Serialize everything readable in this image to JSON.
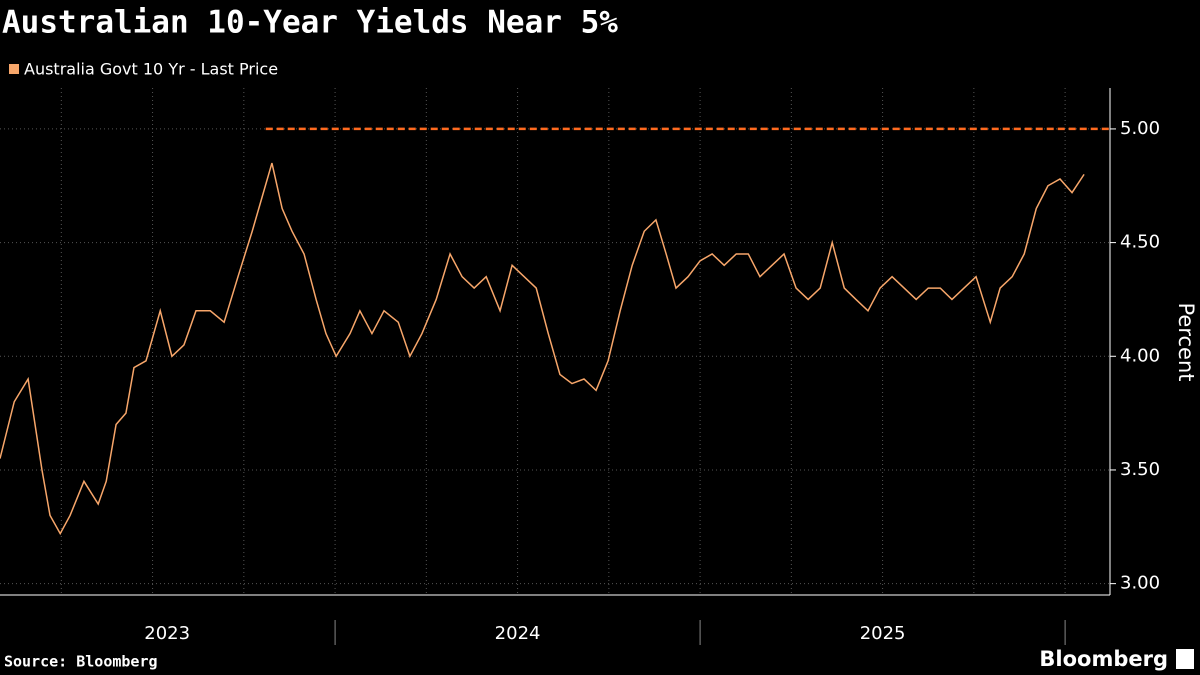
{
  "chart_data": {
    "type": "line",
    "title": "Australian 10-Year Yields Near 5%",
    "source": "Source: Bloomberg",
    "brand": "Bloomberg",
    "y_label": "Percent",
    "series": [
      {
        "name": "Australia Govt 10 Yr - Last Price",
        "color": "#f7a66a",
        "x": [
          2023.082,
          2023.121,
          2023.159,
          2023.197,
          2023.219,
          2023.247,
          2023.274,
          2023.312,
          2023.351,
          2023.373,
          2023.4,
          2023.427,
          2023.449,
          2023.482,
          2023.521,
          2023.553,
          2023.586,
          2023.619,
          2023.658,
          2023.696,
          2023.734,
          2023.773,
          2023.8,
          2023.827,
          2023.855,
          2023.882,
          2023.915,
          2023.948,
          2023.975,
          2024.003,
          2024.041,
          2024.068,
          2024.101,
          2024.134,
          2024.173,
          2024.205,
          2024.238,
          2024.277,
          2024.315,
          2024.348,
          2024.381,
          2024.414,
          2024.452,
          2024.485,
          2024.518,
          2024.551,
          2024.584,
          2024.616,
          2024.649,
          2024.682,
          2024.715,
          2024.748,
          2024.781,
          2024.814,
          2024.847,
          2024.879,
          2024.907,
          2024.934,
          2024.967,
          2025.0,
          2025.033,
          2025.066,
          2025.099,
          2025.132,
          2025.164,
          2025.197,
          2025.23,
          2025.263,
          2025.296,
          2025.329,
          2025.362,
          2025.395,
          2025.427,
          2025.46,
          2025.493,
          2025.526,
          2025.559,
          2025.592,
          2025.625,
          2025.658,
          2025.69,
          2025.723,
          2025.756,
          2025.795,
          2025.822,
          2025.855,
          2025.888,
          2025.921,
          2025.953,
          2025.986,
          2026.019,
          2026.052
        ],
        "values": [
          3.55,
          3.8,
          3.9,
          3.5,
          3.3,
          3.22,
          3.3,
          3.45,
          3.35,
          3.45,
          3.7,
          3.75,
          3.95,
          3.98,
          4.2,
          4.0,
          4.05,
          4.2,
          4.2,
          4.15,
          4.35,
          4.55,
          4.7,
          4.85,
          4.65,
          4.55,
          4.45,
          4.25,
          4.1,
          4.0,
          4.1,
          4.2,
          4.1,
          4.2,
          4.15,
          4.0,
          4.1,
          4.25,
          4.45,
          4.35,
          4.3,
          4.35,
          4.2,
          4.4,
          4.35,
          4.3,
          4.1,
          3.92,
          3.88,
          3.9,
          3.85,
          3.98,
          4.2,
          4.4,
          4.55,
          4.6,
          4.45,
          4.3,
          4.35,
          4.42,
          4.45,
          4.4,
          4.45,
          4.45,
          4.35,
          4.4,
          4.45,
          4.3,
          4.25,
          4.3,
          4.5,
          4.3,
          4.25,
          4.2,
          4.3,
          4.35,
          4.3,
          4.25,
          4.3,
          4.3,
          4.25,
          4.3,
          4.35,
          4.15,
          4.3,
          4.35,
          4.45,
          4.65,
          4.75,
          4.78,
          4.72,
          4.8
        ]
      }
    ],
    "reference_line": {
      "value": 5,
      "from": 2023.81,
      "color": "#ff6a1f"
    },
    "xlim": [
      2023.082,
      2026.123
    ],
    "xticks": [
      {
        "value": 2023.54,
        "label": "2023"
      },
      {
        "value": 2024.5,
        "label": "2024"
      },
      {
        "value": 2025.5,
        "label": "2025"
      }
    ],
    "xseparators": [
      2024,
      2025,
      2026
    ],
    "xgrid": [
      2023.25,
      2023.5,
      2023.75,
      2024,
      2024.25,
      2024.5,
      2024.75,
      2025,
      2025.25,
      2025.5,
      2025.75,
      2026
    ],
    "ylim": [
      2.95,
      5.18
    ],
    "yticks": [
      {
        "value": 3,
        "label": "3.00"
      },
      {
        "value": 3.5,
        "label": "3.50"
      },
      {
        "value": 4,
        "label": "4.00"
      },
      {
        "value": 4.5,
        "label": "4.50"
      },
      {
        "value": 5,
        "label": "5.00"
      }
    ],
    "grid": true
  }
}
